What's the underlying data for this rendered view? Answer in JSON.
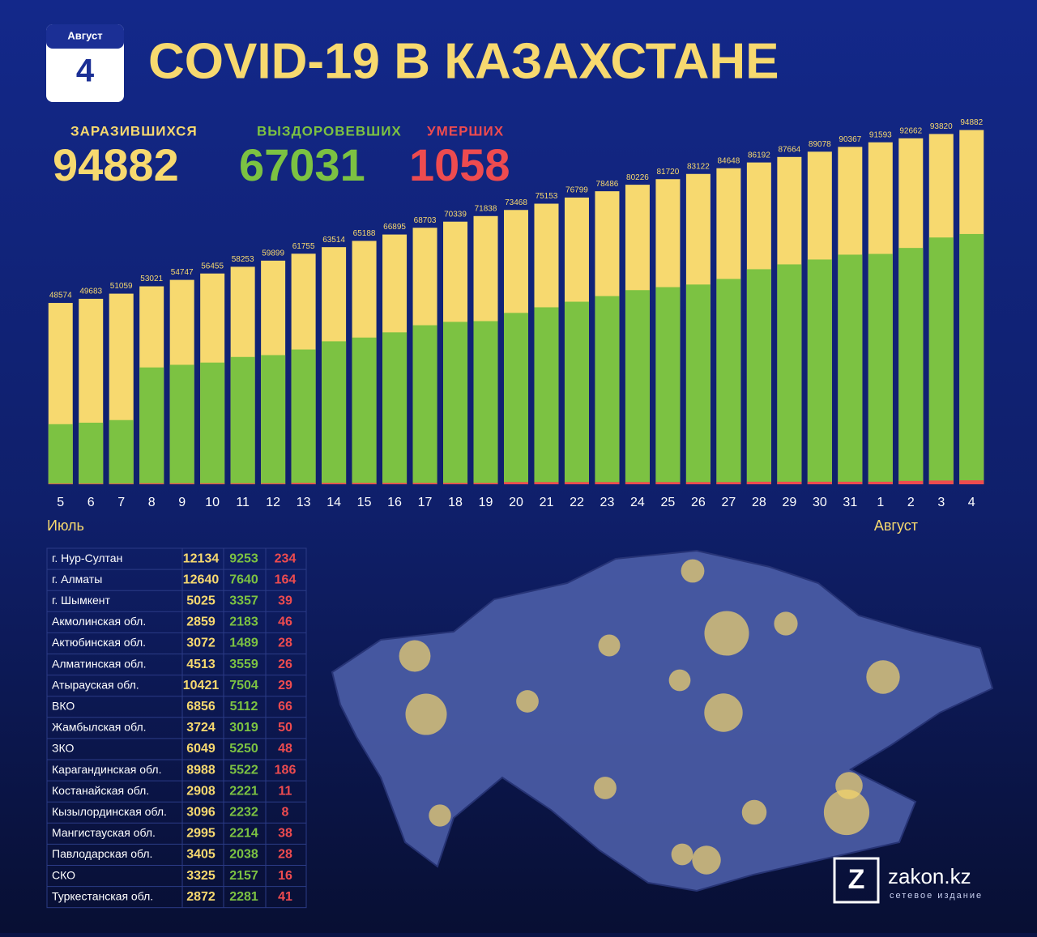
{
  "header": {
    "month": "Август",
    "day": "4",
    "title": "COVID-19 В КАЗАХСТАНЕ"
  },
  "chart_data": {
    "type": "bar",
    "period_labels": [
      "Июль",
      "Август"
    ],
    "categories": [
      "5",
      "6",
      "7",
      "8",
      "9",
      "10",
      "11",
      "12",
      "13",
      "14",
      "15",
      "16",
      "17",
      "18",
      "19",
      "20",
      "21",
      "22",
      "23",
      "24",
      "25",
      "26",
      "27",
      "28",
      "29",
      "30",
      "31",
      "1",
      "2",
      "3",
      "4"
    ],
    "ylim": [
      0,
      95000
    ],
    "series": [
      {
        "name": "ЗАРАЗИВШИХСЯ",
        "color": "#f7d96f",
        "values": [
          48574,
          49683,
          51059,
          53021,
          54747,
          56455,
          58253,
          59899,
          61755,
          63514,
          65188,
          66895,
          68703,
          70339,
          71838,
          73468,
          75153,
          76799,
          78486,
          80226,
          81720,
          83122,
          84648,
          86192,
          87664,
          89078,
          90367,
          91593,
          92662,
          93820,
          94882
        ]
      },
      {
        "name": "ВЫЗДОРОВЕВШИХ",
        "color": "#7cc242",
        "values": [
          16100,
          16500,
          17200,
          31300,
          32000,
          32600,
          34100,
          34600,
          36100,
          38300,
          39300,
          40700,
          42600,
          43500,
          43700,
          45900,
          47400,
          48900,
          50400,
          52000,
          52800,
          53500,
          55000,
          57600,
          58900,
          60200,
          61500,
          61700,
          63300,
          66100,
          67031
        ]
      },
      {
        "name": "УМЕРШИХ",
        "color": "#ee4b4f",
        "values": [
          188,
          188,
          188,
          264,
          264,
          264,
          264,
          264,
          375,
          375,
          375,
          375,
          375,
          375,
          375,
          585,
          585,
          585,
          585,
          585,
          585,
          585,
          585,
          683,
          683,
          683,
          683,
          683,
          903,
          1004,
          1058
        ]
      }
    ]
  },
  "table": {
    "rows": [
      [
        "г. Нур-Султан",
        12134,
        9253,
        234
      ],
      [
        "г. Алматы",
        12640,
        7640,
        164
      ],
      [
        "г. Шымкент",
        5025,
        3357,
        39
      ],
      [
        "Акмолинская обл.",
        2859,
        2183,
        46
      ],
      [
        "Актюбинская обл.",
        3072,
        1489,
        28
      ],
      [
        "Алматинская обл.",
        4513,
        3559,
        26
      ],
      [
        "Атырауская обл.",
        10421,
        7504,
        29
      ],
      [
        "ВКО",
        6856,
        5112,
        66
      ],
      [
        "Жамбылская обл.",
        3724,
        3019,
        50
      ],
      [
        "ЗКО",
        6049,
        5250,
        48
      ],
      [
        "Карагандинская обл.",
        8988,
        5522,
        186
      ],
      [
        "Костанайская обл.",
        2908,
        2221,
        11
      ],
      [
        "Кызылординская обл.",
        3096,
        2232,
        8
      ],
      [
        "Мангистауская обл.",
        2995,
        2214,
        38
      ],
      [
        "Павлодарская обл.",
        3405,
        2038,
        28
      ],
      [
        "СКО",
        3325,
        2157,
        16
      ],
      [
        "Туркестанская обл.",
        2872,
        2281,
        41
      ]
    ]
  },
  "brand": {
    "name": "zakon.kz",
    "subtitle": "сетевое издание"
  }
}
